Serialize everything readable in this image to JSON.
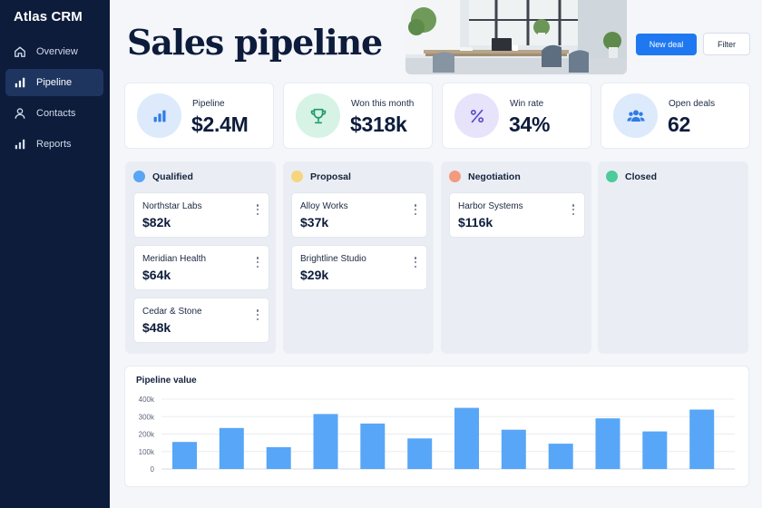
{
  "app": {
    "title": "Atlas CRM"
  },
  "sidebar": {
    "items": [
      {
        "label": "Overview",
        "icon": "home-icon"
      },
      {
        "label": "Pipeline",
        "icon": "bar-chart-icon",
        "active": true
      },
      {
        "label": "Contacts",
        "icon": "user-icon"
      },
      {
        "label": "Reports",
        "icon": "bar-chart-icon"
      }
    ]
  },
  "header": {
    "title": "Sales pipeline",
    "new_deal_label": "New deal",
    "filter_label": "Filter"
  },
  "stats": [
    {
      "label": "Pipeline",
      "value": "$2.4M",
      "icon": "bar-chart-icon",
      "color": "#2f7be8",
      "bg": "#dceafb"
    },
    {
      "label": "Won this month",
      "value": "$318k",
      "icon": "trophy-icon",
      "color": "#1f9a6b",
      "bg": "#d6f3e6"
    },
    {
      "label": "Win rate",
      "value": "34%",
      "icon": "percent-icon",
      "color": "#5b4fc9",
      "bg": "#e7e3fa"
    },
    {
      "label": "Open deals",
      "value": "62",
      "icon": "users-icon",
      "color": "#2f7be8",
      "bg": "#dceafb"
    }
  ],
  "columns": [
    {
      "name": "Qualified",
      "color": "#5aa5f5",
      "deals": [
        {
          "company": "Northstar Labs",
          "amount": "$82k"
        },
        {
          "company": "Meridian Health",
          "amount": "$64k"
        },
        {
          "company": "Cedar & Stone",
          "amount": "$48k"
        }
      ]
    },
    {
      "name": "Proposal",
      "color": "#f7d57e",
      "deals": [
        {
          "company": "Alloy Works",
          "amount": "$37k"
        },
        {
          "company": "Brightline Studio",
          "amount": "$29k"
        }
      ]
    },
    {
      "name": "Negotiation",
      "color": "#f49a7f",
      "deals": [
        {
          "company": "Harbor Systems",
          "amount": "$116k"
        }
      ]
    },
    {
      "name": "Closed",
      "color": "#4ecb9a",
      "deals": []
    }
  ],
  "chart": {
    "title": "Pipeline value"
  },
  "chart_data": {
    "type": "bar",
    "title": "Pipeline value",
    "y_ticks": [
      "400k",
      "300k",
      "200k",
      "100k",
      "0"
    ],
    "ylim": [
      0,
      400000
    ],
    "values": [
      155000,
      235000,
      125000,
      315000,
      260000,
      175000,
      350000,
      225000,
      145000,
      290000,
      215000,
      340000
    ],
    "color": "#58a6f7",
    "grid": true
  }
}
